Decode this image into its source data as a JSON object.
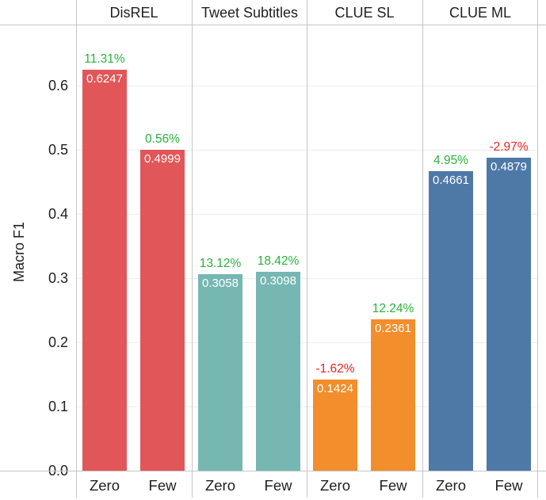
{
  "chart_data": {
    "type": "bar",
    "title": "",
    "xlabel": "",
    "ylabel": "Macro F1",
    "ylim": [
      0,
      0.695
    ],
    "yticks": [
      0.0,
      0.1,
      0.2,
      0.3,
      0.4,
      0.5,
      0.6
    ],
    "ytick_labels": [
      "0.0",
      "0.1",
      "0.2",
      "0.3",
      "0.4",
      "0.5",
      "0.6"
    ],
    "grid": true,
    "legend": "none",
    "groups": [
      {
        "label": "DisREL",
        "color": "#e15759",
        "bars": [
          {
            "category": "Zero",
            "value": 0.6247,
            "value_label": "0.6247",
            "delta_label": "11.31%",
            "delta_positive": true
          },
          {
            "category": "Few",
            "value": 0.4999,
            "value_label": "0.4999",
            "delta_label": "0.56%",
            "delta_positive": true
          }
        ]
      },
      {
        "label": "Tweet Subtitles",
        "color": "#76b7b2",
        "bars": [
          {
            "category": "Zero",
            "value": 0.3058,
            "value_label": "0.3058",
            "delta_label": "13.12%",
            "delta_positive": true
          },
          {
            "category": "Few",
            "value": 0.3098,
            "value_label": "0.3098",
            "delta_label": "18.42%",
            "delta_positive": true
          }
        ]
      },
      {
        "label": "CLUE SL",
        "color": "#f28e2b",
        "bars": [
          {
            "category": "Zero",
            "value": 0.1424,
            "value_label": "0.1424",
            "delta_label": "-1.62%",
            "delta_positive": false
          },
          {
            "category": "Few",
            "value": 0.2361,
            "value_label": "0.2361",
            "delta_label": "12.24%",
            "delta_positive": true
          }
        ]
      },
      {
        "label": "CLUE ML",
        "color": "#4e79a7",
        "bars": [
          {
            "category": "Zero",
            "value": 0.4661,
            "value_label": "0.4661",
            "delta_label": "4.95%",
            "delta_positive": true
          },
          {
            "category": "Few",
            "value": 0.4879,
            "value_label": "0.4879",
            "delta_label": "-2.97%",
            "delta_positive": false
          }
        ]
      }
    ],
    "colors": {
      "positive_delta": "#28b33a",
      "negative_delta": "#e52520",
      "bar_value_text": "#ffffff",
      "gridline": "#ededed",
      "axis_line": "#c6c6c6"
    }
  }
}
